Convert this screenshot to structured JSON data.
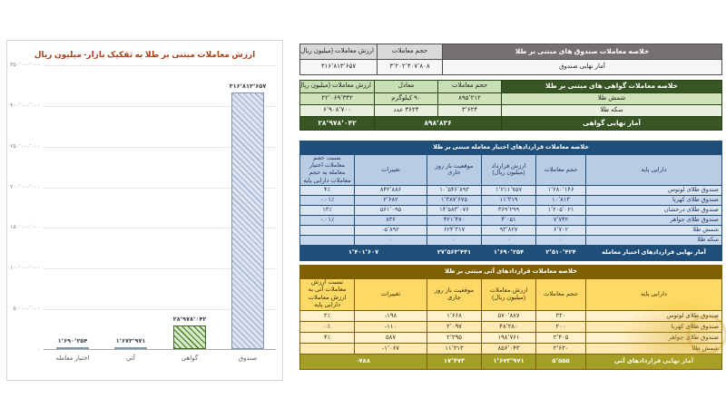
{
  "chart_data": {
    "type": "bar",
    "title": "ارزش معاملات مبتنی بر طلا به تفکیک بازار- میلیون ریال",
    "categories": [
      "اختیار معامله",
      "آتی",
      "گواهی",
      "صندوق"
    ],
    "values": [
      1690254,
      1673971,
      28978042,
      316813657
    ],
    "value_labels": [
      "۱٬۶۹۰٬۲۵۴",
      "۱٬۶۷۳٬۹۷۱",
      "۲۸٬۹۷۸٬۰۴۲",
      "۳۱۶٬۸۱۳٬۶۵۷"
    ],
    "xlabel": "",
    "ylabel": "",
    "ylim": [
      0,
      350000000
    ],
    "grid": true,
    "legend": "none",
    "y_ticks": [
      "۳۵۰٬۰۰۰٬۰۰۰",
      "۳۰۰٬۰۰۰٬۰۰۰",
      "۲۵۰٬۰۰۰٬۰۰۰",
      "۲۰۰٬۰۰۰٬۰۰۰",
      "۱۵۰٬۰۰۰٬۰۰۰",
      "۱۰۰٬۰۰۰٬۰۰۰",
      "۵۰٬۰۰۰٬۰۰۰",
      "۰"
    ]
  },
  "colors": {
    "chart_title": "#a8431e",
    "fund_header": "#767171",
    "certificate_header": "#375623",
    "options_header": "#1f4e79",
    "futures_header": "#7f6000",
    "futures_total_row": "#a39e25",
    "bar_fund_fill": "#b6c4de",
    "bar_certificate_fill": "#6ea04f",
    "bar_small": "#8496b8"
  },
  "fund_table": {
    "title": "خلاصه معاملات صندوق های مبتنی بر طلا",
    "cols": {
      "volume": "حجم معاملات",
      "value": "ارزش معاملات (میلیون ریال)"
    },
    "row_label": "آمار نهایی صندوق",
    "volume": "۳٬۲۰۲٬۴۰۷٬۸۰۸",
    "value": "۳۱۶٬۸۱۳٬۶۵۷"
  },
  "cert_table": {
    "title": "خلاصه معاملات گواهی های مبتنی بر طلا",
    "cols": {
      "volume": "حجم معاملات",
      "equiv": "معادل",
      "value": "ارزش معاملات (میلیون ریال)"
    },
    "rows": [
      {
        "asset": "شمش طلا",
        "volume": "۸۹۵٬۲۱۲",
        "equiv": "۹۰ کیلوگرم",
        "value": "۲۲٬۰۶۹٬۳۴۲"
      },
      {
        "asset": "سکه طلا",
        "volume": "۳٬۶۲۴",
        "equiv": "۳۶۲۴ عدد",
        "value": "۶٬۹۰۸٬۷۰۰"
      }
    ],
    "total": {
      "label": "آمار نهایی گواهی",
      "volume_equiv": "۸۹۸٬۸۳۶",
      "value": "۲۸٬۹۷۸٬۰۴۲"
    }
  },
  "options_table": {
    "title": "خلاصه معاملات قراردادهای اختیار معامله مبتنی بر طلا",
    "cols": {
      "asset": "دارایی پایه",
      "volume": "حجم معاملات",
      "value": "ارزش قرارداد (میلیون ریال)",
      "open": "موقعیت باز روز جاری",
      "change": "تغییرات",
      "ratio": "نسبت حجم معاملات اختیار معامله به حجم معاملات دارایی پایه"
    },
    "rows": [
      {
        "asset": "صندوق طلای لوتوس",
        "volume": "۱٬۲۸۰٬۱۴۶",
        "value": "۱٬۲۱۱٬۷۵۷",
        "open": "۱۰٬۵۴۶٬۸۹۳",
        "change": "۸۴۲٬۸۸۶",
        "ratio": "۴٪"
      },
      {
        "asset": "صندوق طلای کهربا",
        "volume": "۱۰٬۸۱۳",
        "value": "۱۱٬۳۱۹",
        "open": "۱٬۳۸۷٬۶۷۵",
        "change": "۲٬۶۸۲",
        "ratio": "۰.۰۱٪"
      },
      {
        "asset": "صندوق طلای درخشان",
        "volume": "۱٬۲۰۵٬۰۲۱",
        "value": "۳۶۹٬۲۹۹",
        "open": "۱۴٬۵۸۳٬۰۷۶",
        "change": "۵۶۱٬۰۹۵",
        "ratio": "۱۳٪"
      },
      {
        "asset": "صندوق طلای جواهر",
        "volume": "۷٬۷۴۲",
        "value": "۴٬۰۵۱",
        "open": "۴۲۱٬۴۷۰",
        "change": "۸۳۶",
        "ratio": "۰.۰۱٪"
      },
      {
        "asset": "شمش طلا",
        "volume": "۶٬۷۰۲",
        "value": "۹۳٬۸۲۷",
        "open": "۶۲۴٬۳۱۷",
        "change": "-۵٬۸۹۲",
        "ratio": ""
      },
      {
        "asset": "سکه طلا",
        "volume": "۰",
        "value": "۰",
        "open": "۰",
        "change": "۰",
        "ratio": ""
      }
    ],
    "total": {
      "label": "آمار نهایی قراردادهای اختیار معامله",
      "volume": "۲٬۵۱۰٬۴۲۴",
      "value": "۱٬۶۹۰٬۲۵۴",
      "open": "۲۷٬۵۶۳٬۴۳۱",
      "change": "۱٬۴۰۱٬۶۰۷"
    }
  },
  "futures_table": {
    "title": "خلاصه معاملات قراردادهای آتی مبتنی بر طلا",
    "cols": {
      "asset": "دارایی پایه",
      "volume": "حجم معاملات",
      "value": "ارزش معاملات (میلیون ریال)",
      "open": "موقعیت باز روز جاری",
      "change": "تغییرات",
      "ratio": "نسبت ارزش معاملات آتی به ارزش معاملات دارایی پایه"
    },
    "rows": [
      {
        "asset": "صندوق طلای لوتوس",
        "volume": "۳۲۰",
        "value": "۵۷۰٬۸۸۷",
        "open": "۱٬۶۶۸",
        "change": "-۱۹۸",
        "ratio": "۲٪"
      },
      {
        "asset": "صندوق طلای کهربا",
        "volume": "۲۰۰",
        "value": "۴۸٬۲۸۰",
        "open": "۲٬۰۹۷",
        "change": "-۱۱۰",
        "ratio": "۰٪"
      },
      {
        "asset": "صندوق طلای جواهر",
        "volume": "۲٬۴۰۵",
        "value": "۱۹۸٬۷۶۱",
        "open": "۲٬۳۹۵",
        "change": "۵۸۷",
        "ratio": "۴٪"
      },
      {
        "asset": "شمش طلا",
        "volume": "۲٬۶۳۰",
        "value": "۸۵۶٬۰۴۳",
        "open": "۱۱٬۳۱۳",
        "change": "-۱٬۰۶۷",
        "ratio": ""
      }
    ],
    "total": {
      "label": "آمار نهایی قراردادهای آتی",
      "volume": "۵٬۵۵۵",
      "value": "۱٬۶۷۳٬۹۷۱",
      "open": "۱۷٬۴۷۳",
      "change": "-۷۸۸"
    }
  }
}
